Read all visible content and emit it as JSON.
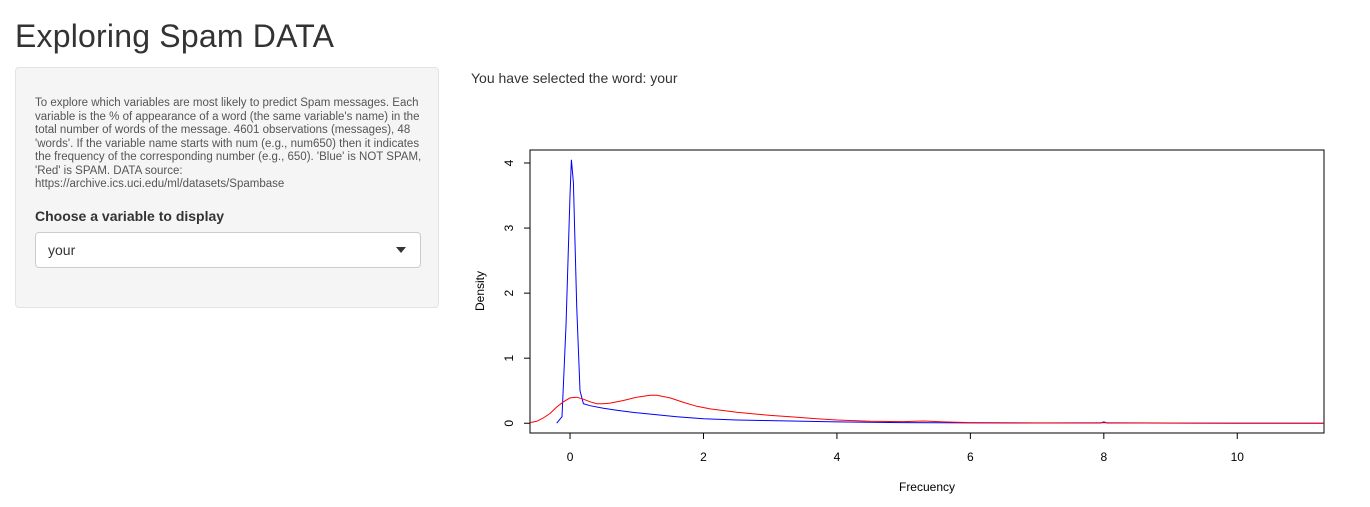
{
  "page": {
    "title": "Exploring Spam DATA",
    "description": "To explore which variables are most likely to predict Spam messages. Each variable is the % of appearance of a word (the same variable's name) in the total number of words of the message. 4601 observations (messages), 48 'words'. If the variable name starts with num (e.g., num650) then it indicates the frequency of the corresponding number (e.g., 650). 'Blue' is NOT SPAM, 'Red' is SPAM. DATA source: https://archive.ics.uci.edu/ml/datasets/Spambase",
    "select_label": "Choose a variable to display",
    "select_value": "your",
    "selected_text": "You have selected the word: your"
  },
  "colors": {
    "not_spam": "#0000ff",
    "spam": "#ff0000",
    "panel_bg": "#f5f5f5"
  },
  "chart_data": {
    "type": "line",
    "title": "",
    "xlabel": "Frecuency",
    "ylabel": "Density",
    "xlim": [
      -0.6,
      11.3
    ],
    "ylim": [
      -0.15,
      4.2
    ],
    "xticks": [
      0,
      2,
      4,
      6,
      8,
      10
    ],
    "yticks": [
      0,
      1,
      2,
      3,
      4
    ],
    "grid": false,
    "series": [
      {
        "color": "#0000ff",
        "points": [
          [
            -0.2,
            0
          ],
          [
            -0.12,
            0.1
          ],
          [
            -0.06,
            1.5
          ],
          [
            0.0,
            3.5
          ],
          [
            0.02,
            4.05
          ],
          [
            0.05,
            3.7
          ],
          [
            0.1,
            1.8
          ],
          [
            0.15,
            0.5
          ],
          [
            0.2,
            0.3
          ],
          [
            0.3,
            0.27
          ],
          [
            0.5,
            0.23
          ],
          [
            0.7,
            0.2
          ],
          [
            1.0,
            0.16
          ],
          [
            1.3,
            0.13
          ],
          [
            1.6,
            0.1
          ],
          [
            2.0,
            0.07
          ],
          [
            2.5,
            0.05
          ],
          [
            3.0,
            0.04
          ],
          [
            3.5,
            0.03
          ],
          [
            4.0,
            0.02
          ],
          [
            5.0,
            0.01
          ],
          [
            6.0,
            0.005
          ],
          [
            7.0,
            0.003
          ],
          [
            7.95,
            0.004
          ],
          [
            8.0,
            0.02
          ],
          [
            8.05,
            0.004
          ],
          [
            9.0,
            0.002
          ],
          [
            10.0,
            0.001
          ],
          [
            11.3,
            0
          ]
        ]
      },
      {
        "color": "#ff0000",
        "points": [
          [
            -0.6,
            0.01
          ],
          [
            -0.5,
            0.03
          ],
          [
            -0.4,
            0.08
          ],
          [
            -0.3,
            0.15
          ],
          [
            -0.2,
            0.25
          ],
          [
            -0.1,
            0.33
          ],
          [
            0.0,
            0.39
          ],
          [
            0.1,
            0.4
          ],
          [
            0.2,
            0.37
          ],
          [
            0.3,
            0.33
          ],
          [
            0.4,
            0.3
          ],
          [
            0.5,
            0.3
          ],
          [
            0.6,
            0.31
          ],
          [
            0.8,
            0.35
          ],
          [
            1.0,
            0.4
          ],
          [
            1.2,
            0.43
          ],
          [
            1.3,
            0.43
          ],
          [
            1.5,
            0.39
          ],
          [
            1.7,
            0.32
          ],
          [
            1.9,
            0.26
          ],
          [
            2.1,
            0.22
          ],
          [
            2.5,
            0.17
          ],
          [
            3.0,
            0.12
          ],
          [
            3.3,
            0.1
          ],
          [
            3.7,
            0.07
          ],
          [
            4.0,
            0.05
          ],
          [
            4.5,
            0.03
          ],
          [
            5.0,
            0.025
          ],
          [
            5.3,
            0.035
          ],
          [
            5.6,
            0.02
          ],
          [
            6.0,
            0.01
          ],
          [
            7.0,
            0.005
          ],
          [
            8.0,
            0.008
          ],
          [
            9.0,
            0.003
          ],
          [
            10.0,
            0.002
          ],
          [
            11.3,
            0.001
          ]
        ]
      }
    ]
  }
}
